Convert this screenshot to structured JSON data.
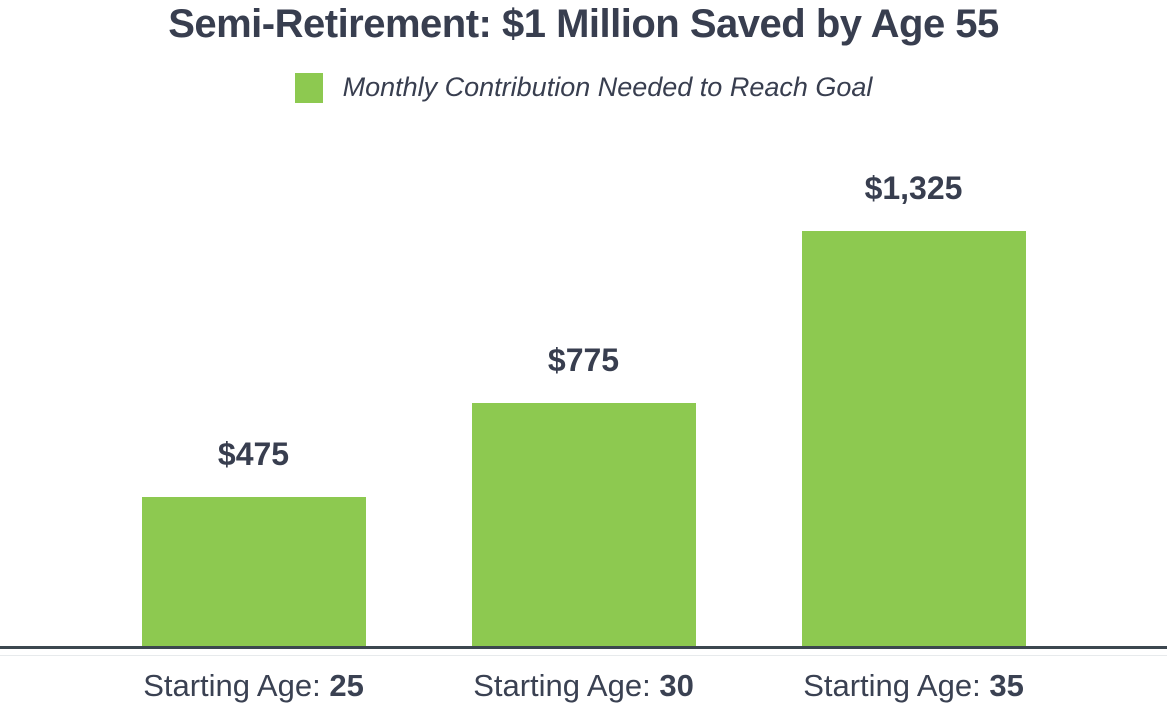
{
  "title": "Semi-Retirement: $1 Million Saved by Age 55",
  "legend": {
    "label": "Monthly Contribution Needed to Reach Goal",
    "swatch_color": "#8DC950"
  },
  "colors": {
    "bar_green": "#8DC950",
    "text_dark": "#383E4F",
    "axis_line": "#3C474F",
    "background": "#FFFFFF"
  },
  "chart_data": {
    "type": "bar",
    "title": "Semi-Retirement: $1 Million Saved by Age 55",
    "categories": [
      "Starting Age: 25",
      "Starting Age: 30",
      "Starting Age: 35"
    ],
    "values": [
      475,
      775,
      1325
    ],
    "value_labels": [
      "$475",
      "$775",
      "$1,325"
    ],
    "x_labels": [
      {
        "prefix": "Starting Age:",
        "value": "25"
      },
      {
        "prefix": "Starting Age:",
        "value": "30"
      },
      {
        "prefix": "Starting Age:",
        "value": "35"
      }
    ],
    "xlabel": "",
    "ylabel": "",
    "ylim": [
      0,
      1325
    ],
    "legend": "Monthly Contribution Needed to Reach Goal",
    "legend_position": "top",
    "grid": false,
    "bar_color": "#8DC950"
  }
}
